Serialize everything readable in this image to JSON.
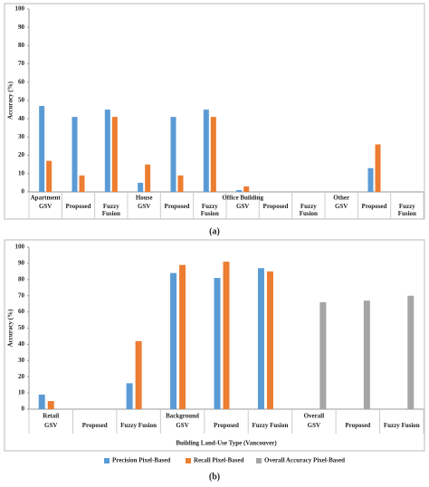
{
  "chart_data": [
    {
      "type": "bar",
      "caption": "(a)",
      "y_label": "Accuracy (%)",
      "group_labels": [
        "Apartment",
        null,
        null,
        "House",
        null,
        null,
        "Office Building",
        null,
        null,
        "Other",
        null,
        null
      ],
      "categories": [
        "GSV",
        "Proposed",
        "Fuzzy Fusion",
        "GSV",
        "Proposed",
        "Fuzzy Fusion",
        "GSV",
        "Proposed",
        "Fuzzy Fusion",
        "GSV",
        "Proposed",
        "Fuzzy Fusion"
      ],
      "series": [
        {
          "color": "#5b9bd5",
          "values": [
            47,
            41,
            45,
            5,
            41,
            45,
            1,
            null,
            null,
            null,
            13,
            null
          ]
        },
        {
          "color": "#ed7d31",
          "values": [
            17,
            9,
            41,
            15,
            9,
            41,
            3,
            null,
            null,
            null,
            26,
            null
          ]
        }
      ],
      "ylim": [
        0,
        100
      ],
      "yticks": [
        0,
        10,
        20,
        30,
        40,
        50,
        60,
        70,
        80,
        90,
        100
      ]
    },
    {
      "type": "bar",
      "caption": "(b)",
      "y_label": "Accuracy (%)",
      "x_label": "Building Land-Use Type (Vancouver)",
      "group_labels": [
        "Retail",
        null,
        null,
        "Background",
        null,
        null,
        "Overall",
        null,
        null
      ],
      "categories": [
        "GSV",
        "Proposed",
        "Fuzzy Fusion",
        "GSV",
        "Proposed",
        "Fuzzy Fusion",
        "GSV",
        "Proposed",
        "Fuzzy Fusion"
      ],
      "series": [
        {
          "name": "Precision Pixel-Based",
          "color": "#5b9bd5",
          "values": [
            9,
            null,
            16,
            84,
            81,
            87,
            null,
            null,
            null
          ]
        },
        {
          "name": "Recall Pixel-Based",
          "color": "#ed7d31",
          "values": [
            5,
            null,
            42,
            89,
            91,
            85,
            null,
            null,
            null
          ]
        },
        {
          "name": "Overall Accuracy Pixel-Based",
          "color": "#a5a5a5",
          "values": [
            null,
            null,
            null,
            null,
            null,
            null,
            66,
            67,
            70
          ]
        }
      ],
      "ylim": [
        0,
        100
      ],
      "yticks": [
        0,
        10,
        20,
        30,
        40,
        50,
        60,
        70,
        80,
        90,
        100
      ],
      "legend": "bottom"
    }
  ]
}
